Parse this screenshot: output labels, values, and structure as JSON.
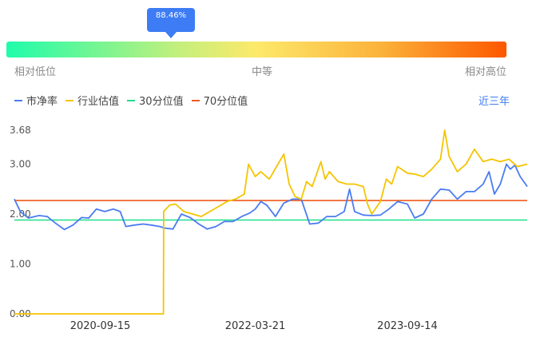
{
  "gauge": {
    "value_label": "88.46%",
    "percentile": 0.8846,
    "colors": [
      "#1ffcab",
      "#fde96a",
      "#fd5700"
    ],
    "labels": {
      "low": "相对低位",
      "mid": "中等",
      "high": "相对高位"
    }
  },
  "legend": {
    "items": [
      {
        "label": "市净率",
        "color": "#4a7cf0"
      },
      {
        "label": "行业估值",
        "color": "#f5c400"
      },
      {
        "label": "30分位值",
        "color": "#1fdf8a"
      },
      {
        "label": "70分位值",
        "color": "#f05a1a"
      }
    ],
    "range_button": "近三年"
  },
  "chart_data": {
    "type": "line",
    "ylim": [
      0,
      3.68
    ],
    "ytick_labels": [
      "3.68",
      "3.00",
      "2.00",
      "1.00",
      "0.00"
    ],
    "ytick_values": [
      3.68,
      3.0,
      2.0,
      1.0,
      0.0
    ],
    "xtick_labels": [
      "2020-09-15",
      "2022-03-21",
      "2023-09-14"
    ],
    "x_start": "2019-11-14",
    "x_end": "2024-11-14",
    "series": [
      {
        "name": "市净率",
        "color": "#4a7cf0",
        "points": [
          [
            "2019-11-14",
            2.3
          ],
          [
            "2019-12-05",
            2.05
          ],
          [
            "2020-01-03",
            1.92
          ],
          [
            "2020-02-10",
            1.97
          ],
          [
            "2020-03-10",
            1.95
          ],
          [
            "2020-04-08",
            1.82
          ],
          [
            "2020-05-10",
            1.69
          ],
          [
            "2020-06-10",
            1.78
          ],
          [
            "2020-07-10",
            1.93
          ],
          [
            "2020-08-05",
            1.92
          ],
          [
            "2020-09-01",
            2.1
          ],
          [
            "2020-10-01",
            2.05
          ],
          [
            "2020-11-01",
            2.1
          ],
          [
            "2020-11-25",
            2.05
          ],
          [
            "2020-12-15",
            1.75
          ],
          [
            "2021-01-15",
            1.78
          ],
          [
            "2021-02-15",
            1.8
          ],
          [
            "2021-03-15",
            1.78
          ],
          [
            "2021-04-15",
            1.75
          ],
          [
            "2021-05-01",
            1.72
          ],
          [
            "2021-06-01",
            1.7
          ],
          [
            "2021-07-01",
            2.0
          ],
          [
            "2021-08-01",
            1.93
          ],
          [
            "2021-09-01",
            1.8
          ],
          [
            "2021-10-01",
            1.7
          ],
          [
            "2021-11-01",
            1.75
          ],
          [
            "2021-12-01",
            1.85
          ],
          [
            "2022-01-01",
            1.85
          ],
          [
            "2022-02-01",
            1.95
          ],
          [
            "2022-03-01",
            2.02
          ],
          [
            "2022-03-21",
            2.1
          ],
          [
            "2022-04-10",
            2.25
          ],
          [
            "2022-05-01",
            2.18
          ],
          [
            "2022-06-01",
            1.95
          ],
          [
            "2022-07-01",
            2.22
          ],
          [
            "2022-08-01",
            2.3
          ],
          [
            "2022-09-01",
            2.3
          ],
          [
            "2022-10-01",
            1.8
          ],
          [
            "2022-11-01",
            1.82
          ],
          [
            "2022-12-01",
            1.95
          ],
          [
            "2023-01-01",
            1.95
          ],
          [
            "2023-02-01",
            2.05
          ],
          [
            "2023-02-20",
            2.5
          ],
          [
            "2023-03-10",
            2.05
          ],
          [
            "2023-04-10",
            1.98
          ],
          [
            "2023-05-10",
            1.97
          ],
          [
            "2023-06-10",
            1.98
          ],
          [
            "2023-07-10",
            2.1
          ],
          [
            "2023-08-10",
            2.25
          ],
          [
            "2023-09-14",
            2.2
          ],
          [
            "2023-10-10",
            1.92
          ],
          [
            "2023-11-10",
            2.0
          ],
          [
            "2023-12-10",
            2.3
          ],
          [
            "2024-01-10",
            2.5
          ],
          [
            "2024-02-10",
            2.48
          ],
          [
            "2024-03-10",
            2.3
          ],
          [
            "2024-04-10",
            2.45
          ],
          [
            "2024-05-10",
            2.45
          ],
          [
            "2024-06-10",
            2.6
          ],
          [
            "2024-07-01",
            2.85
          ],
          [
            "2024-07-20",
            2.4
          ],
          [
            "2024-08-10",
            2.6
          ],
          [
            "2024-09-01",
            3.0
          ],
          [
            "2024-09-15",
            2.9
          ],
          [
            "2024-10-01",
            2.98
          ],
          [
            "2024-10-20",
            2.75
          ],
          [
            "2024-11-14",
            2.55
          ]
        ]
      },
      {
        "name": "行业估值",
        "color": "#f5c400",
        "points": [
          [
            "2019-11-14",
            0.0
          ],
          [
            "2021-04-28",
            0.0
          ],
          [
            "2021-04-29",
            2.05
          ],
          [
            "2021-05-20",
            2.18
          ],
          [
            "2021-06-10",
            2.2
          ],
          [
            "2021-07-10",
            2.05
          ],
          [
            "2021-08-10",
            2.0
          ],
          [
            "2021-09-10",
            1.95
          ],
          [
            "2021-10-10",
            2.05
          ],
          [
            "2021-11-10",
            2.15
          ],
          [
            "2021-12-10",
            2.25
          ],
          [
            "2022-01-10",
            2.3
          ],
          [
            "2022-02-10",
            2.4
          ],
          [
            "2022-02-25",
            3.0
          ],
          [
            "2022-03-21",
            2.75
          ],
          [
            "2022-04-10",
            2.85
          ],
          [
            "2022-05-10",
            2.7
          ],
          [
            "2022-06-10",
            3.0
          ],
          [
            "2022-07-01",
            3.2
          ],
          [
            "2022-07-20",
            2.6
          ],
          [
            "2022-08-10",
            2.35
          ],
          [
            "2022-09-01",
            2.3
          ],
          [
            "2022-09-20",
            2.65
          ],
          [
            "2022-10-10",
            2.55
          ],
          [
            "2022-11-10",
            3.05
          ],
          [
            "2022-11-25",
            2.7
          ],
          [
            "2022-12-10",
            2.85
          ],
          [
            "2023-01-10",
            2.65
          ],
          [
            "2023-02-10",
            2.6
          ],
          [
            "2023-03-10",
            2.6
          ],
          [
            "2023-04-10",
            2.55
          ],
          [
            "2023-04-25",
            2.2
          ],
          [
            "2023-05-10",
            2.0
          ],
          [
            "2023-06-10",
            2.25
          ],
          [
            "2023-07-01",
            2.7
          ],
          [
            "2023-07-20",
            2.6
          ],
          [
            "2023-08-10",
            2.95
          ],
          [
            "2023-09-14",
            2.82
          ],
          [
            "2023-10-10",
            2.8
          ],
          [
            "2023-11-10",
            2.75
          ],
          [
            "2023-12-10",
            2.9
          ],
          [
            "2024-01-10",
            3.1
          ],
          [
            "2024-01-25",
            3.68
          ],
          [
            "2024-02-10",
            3.15
          ],
          [
            "2024-03-10",
            2.85
          ],
          [
            "2024-04-10",
            3.0
          ],
          [
            "2024-05-10",
            3.3
          ],
          [
            "2024-06-10",
            3.05
          ],
          [
            "2024-07-10",
            3.1
          ],
          [
            "2024-08-10",
            3.05
          ],
          [
            "2024-09-10",
            3.1
          ],
          [
            "2024-10-10",
            2.95
          ],
          [
            "2024-11-14",
            3.0
          ]
        ]
      },
      {
        "name": "30分位值",
        "color": "#1fdf8a",
        "points": [
          [
            "2019-11-14",
            1.88
          ],
          [
            "2024-11-14",
            1.88
          ]
        ]
      },
      {
        "name": "70分位值",
        "color": "#f05a1a",
        "points": [
          [
            "2019-11-14",
            2.27
          ],
          [
            "2024-11-14",
            2.27
          ]
        ]
      }
    ]
  }
}
